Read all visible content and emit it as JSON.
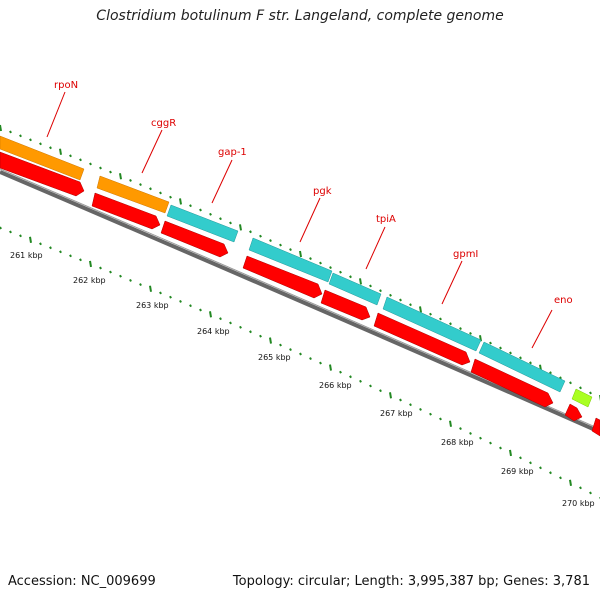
{
  "title": "Clostridium botulinum F str. Langeland, complete genome",
  "footer": {
    "accession": "Accession: NC_009699",
    "topology": "Topology: circular; Length: 3,995,387 bp; Genes: 3,781"
  },
  "colors": {
    "cds": "#ff0000",
    "cds_dark": "#b00000",
    "orange": "#ff9900",
    "cyan": "#33cccc",
    "lime": "#aaff22",
    "backbone": "#888888",
    "tick": "#228822",
    "label": "#dd0000"
  },
  "kbp_labels": [
    "261 kbp",
    "262 kbp",
    "263 kbp",
    "264 kbp",
    "265 kbp",
    "266 kbp",
    "267 kbp",
    "268 kbp",
    "269 kbp",
    "270 kbp"
  ],
  "genes": [
    {
      "name": "rpoN",
      "class": "orange"
    },
    {
      "name": "cggR",
      "class": "orange"
    },
    {
      "name": "gap-1",
      "class": "cyan"
    },
    {
      "name": "pgk",
      "class": "cyan"
    },
    {
      "name": "tpiA",
      "class": "cyan"
    },
    {
      "name": "gpmI",
      "class": "cyan"
    },
    {
      "name": "eno",
      "class": "cyan"
    }
  ]
}
